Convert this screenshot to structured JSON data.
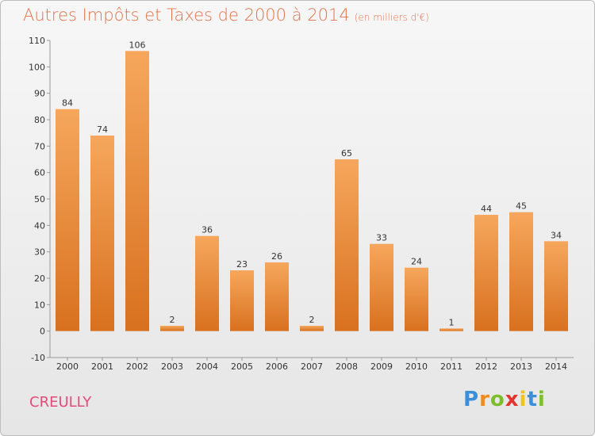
{
  "title": "Autres Impôts et Taxes de 2000 à 2014",
  "subtitle": "(en milliers d'€)",
  "commune": "CREULLY",
  "logo": {
    "letters": [
      "P",
      "r",
      "o",
      "x",
      "i",
      "t",
      "i"
    ],
    "colors": [
      "#3a8fd8",
      "#f08a1c",
      "#7bbf2a",
      "#e3342f",
      "#f0c419",
      "#3a8fd8",
      "#7bbf2a"
    ]
  },
  "colors": {
    "bar_top": "#f6a75c",
    "bar_bottom": "#d8711f",
    "title": "#e0734a",
    "commune": "#e34b7a"
  },
  "chart_data": {
    "type": "bar",
    "title": "Autres Impôts et Taxes de 2000 à 2014",
    "subtitle": "(en milliers d'€)",
    "categories": [
      "2000",
      "2001",
      "2002",
      "2003",
      "2004",
      "2005",
      "2006",
      "2007",
      "2008",
      "2009",
      "2010",
      "2011",
      "2012",
      "2013",
      "2014"
    ],
    "values": [
      84,
      74,
      106,
      2,
      36,
      23,
      26,
      2,
      65,
      33,
      24,
      1,
      44,
      45,
      34
    ],
    "ylim": [
      -10,
      110
    ],
    "yticks": [
      -10,
      0,
      10,
      20,
      30,
      40,
      50,
      60,
      70,
      80,
      90,
      100,
      110
    ],
    "grid": false,
    "xlabel": "",
    "ylabel": ""
  }
}
